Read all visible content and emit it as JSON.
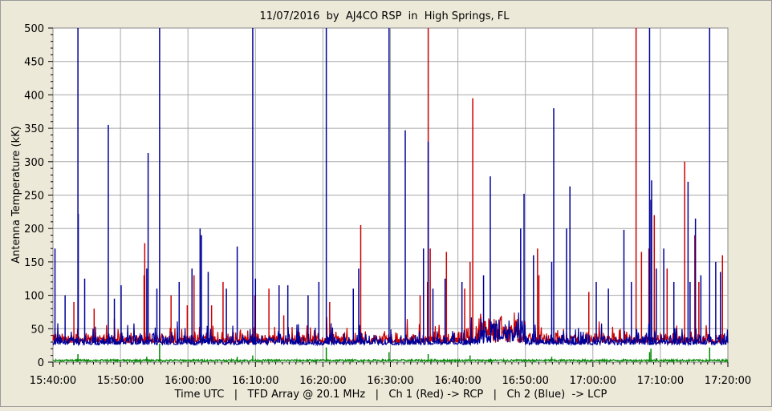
{
  "chart_data": {
    "type": "line",
    "title": "11/07/2016  by  AJ4CO RSP  in  High Springs, FL",
    "xlabel": "Time UTC   |   TFD Array @ 20.1 MHz   |   Ch 1 (Red) -> RCP   |   Ch 2 (Blue)  -> LCP",
    "ylabel": "Antenna Temperature (kK)",
    "x_ticks": [
      "15:40:00",
      "15:50:00",
      "16:00:00",
      "16:10:00",
      "16:20:00",
      "16:30:00",
      "16:40:00",
      "16:50:00",
      "17:00:00",
      "17:10:00",
      "17:20:00"
    ],
    "y_ticks": [
      "0",
      "50",
      "100",
      "150",
      "200",
      "250",
      "300",
      "350",
      "400",
      "450",
      "500"
    ],
    "xlim_minutes": [
      0,
      100
    ],
    "ylim": [
      0,
      500
    ],
    "grid": true,
    "series": [
      {
        "name": "Ch 1 (Red) -> RCP",
        "color": "#CC0000",
        "baseline": 33,
        "spikes": [
          [
            0.3,
            50
          ],
          [
            3.1,
            90
          ],
          [
            6.1,
            80
          ],
          [
            9.1,
            65
          ],
          [
            13.5,
            130
          ],
          [
            13.6,
            178
          ],
          [
            17.5,
            100
          ],
          [
            19.9,
            85
          ],
          [
            20.9,
            130
          ],
          [
            23.5,
            85
          ],
          [
            25.2,
            120
          ],
          [
            29.9,
            100
          ],
          [
            32,
            110
          ],
          [
            34.2,
            70
          ],
          [
            41,
            90
          ],
          [
            45.6,
            205
          ],
          [
            54.4,
            100
          ],
          [
            55.5,
            120
          ],
          [
            55.6,
            500
          ],
          [
            55.9,
            170
          ],
          [
            58.3,
            165
          ],
          [
            61,
            110
          ],
          [
            61.8,
            150
          ],
          [
            62.2,
            395
          ],
          [
            71.8,
            170
          ],
          [
            72,
            130
          ],
          [
            79.4,
            105
          ],
          [
            86.4,
            500
          ],
          [
            87.2,
            165
          ],
          [
            88.3,
            170
          ],
          [
            89.1,
            220
          ],
          [
            91,
            140
          ],
          [
            93.6,
            300
          ],
          [
            95.1,
            190
          ],
          [
            95.7,
            120
          ],
          [
            99.2,
            160
          ]
        ]
      },
      {
        "name": "Ch 2 (Blue)  -> LCP",
        "color": "#000099",
        "baseline": 30,
        "spikes": [
          [
            0.3,
            170
          ],
          [
            1.8,
            100
          ],
          [
            3.7,
            500
          ],
          [
            3.75,
            222
          ],
          [
            4.7,
            125
          ],
          [
            8.2,
            355
          ],
          [
            9.1,
            95
          ],
          [
            10.1,
            115
          ],
          [
            13.9,
            140
          ],
          [
            14.1,
            313
          ],
          [
            15.4,
            110
          ],
          [
            15.8,
            500
          ],
          [
            18.7,
            120
          ],
          [
            20.6,
            140
          ],
          [
            21.8,
            200
          ],
          [
            22,
            190
          ],
          [
            23,
            135
          ],
          [
            25.7,
            110
          ],
          [
            27.3,
            173
          ],
          [
            29.6,
            500
          ],
          [
            30,
            125
          ],
          [
            33.5,
            115
          ],
          [
            34.8,
            115
          ],
          [
            37.8,
            100
          ],
          [
            39.4,
            120
          ],
          [
            40.5,
            500
          ],
          [
            44.5,
            110
          ],
          [
            45.3,
            140
          ],
          [
            49.8,
            500
          ],
          [
            52.2,
            347
          ],
          [
            54.9,
            170
          ],
          [
            55.6,
            330
          ],
          [
            56.3,
            110
          ],
          [
            58.1,
            125
          ],
          [
            60.6,
            120
          ],
          [
            63.8,
            130
          ],
          [
            64.8,
            278
          ],
          [
            69.3,
            200
          ],
          [
            69.8,
            252
          ],
          [
            71.2,
            160
          ],
          [
            73.9,
            150
          ],
          [
            74.2,
            380
          ],
          [
            76.1,
            200
          ],
          [
            76.6,
            263
          ],
          [
            80.5,
            120
          ],
          [
            82.3,
            110
          ],
          [
            84.6,
            198
          ],
          [
            85.7,
            120
          ],
          [
            88.4,
            500
          ],
          [
            88.6,
            243
          ],
          [
            88.7,
            272
          ],
          [
            89.4,
            140
          ],
          [
            90.5,
            170
          ],
          [
            92,
            120
          ],
          [
            94.1,
            270
          ],
          [
            94.4,
            120
          ],
          [
            95.2,
            215
          ],
          [
            96,
            130
          ],
          [
            97.3,
            500
          ],
          [
            98.2,
            150
          ],
          [
            98.9,
            135
          ]
        ]
      },
      {
        "name": "",
        "color": "#008800",
        "baseline": 1,
        "spikes": [
          [
            3.7,
            12
          ],
          [
            13.9,
            8
          ],
          [
            15.8,
            28
          ],
          [
            27.3,
            8
          ],
          [
            29.6,
            10
          ],
          [
            40.5,
            22
          ],
          [
            49.8,
            15
          ],
          [
            55.6,
            12
          ],
          [
            61.8,
            10
          ],
          [
            73.9,
            8
          ],
          [
            88.4,
            15
          ],
          [
            88.6,
            20
          ],
          [
            97.3,
            22
          ],
          [
            89.4,
            6
          ]
        ]
      }
    ]
  }
}
